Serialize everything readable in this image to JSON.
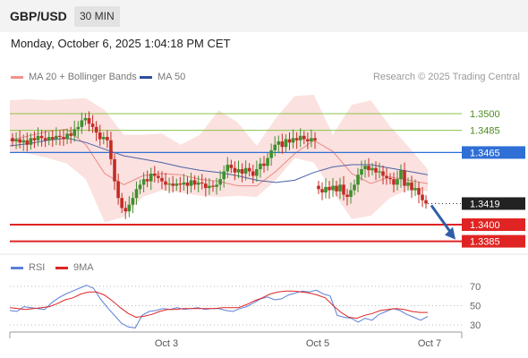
{
  "header": {
    "pair": "GBP/USD",
    "timeframe": "30 MIN"
  },
  "timestamp": "Monday, October 6, 2025 1:04:18 PM CET",
  "legend": {
    "ma20_bb": "MA 20 + Bollinger Bands",
    "ma50": "MA 50",
    "rsi": "RSI",
    "rsi_ma": "9MA"
  },
  "research": "Research © 2025 Trading Central",
  "colors": {
    "bollinger": "#f7c8c4",
    "ma20": "#e88b87",
    "ma50": "#4a63a8",
    "up": "#3f8f2f",
    "down": "#c42b25",
    "resistance": "#8bc34a",
    "pivot": "#2f6fd6",
    "support": "#e02424",
    "arrow": "#2f5fa8",
    "rsi": "#5b7fd6",
    "rsi_ma": "#e02424"
  },
  "chart_data": [
    {
      "type": "line",
      "name": "price",
      "levels": [
        {
          "label": "1.3500",
          "value": 1.35,
          "kind": "resistance"
        },
        {
          "label": "1.3485",
          "value": 1.3485,
          "kind": "resistance"
        },
        {
          "label": "1.3465",
          "value": 1.3465,
          "kind": "pivot"
        },
        {
          "label": "1.3419",
          "value": 1.3419,
          "kind": "last"
        },
        {
          "label": "1.3400",
          "value": 1.34,
          "kind": "support"
        },
        {
          "label": "1.3385",
          "value": 1.3385,
          "kind": "support"
        }
      ],
      "x_ticks": [
        "Oct 3",
        "Oct 5",
        "Oct 7"
      ],
      "ylim": [
        1.3375,
        1.3525
      ],
      "closes": [
        1.3475,
        1.3477,
        1.3474,
        1.3476,
        1.3472,
        1.3478,
        1.3476,
        1.348,
        1.3478,
        1.3476,
        1.3479,
        1.3477,
        1.348,
        1.3479,
        1.3477,
        1.3482,
        1.348,
        1.3486,
        1.3488,
        1.3494,
        1.3496,
        1.3491,
        1.3488,
        1.3483,
        1.3477,
        1.3479,
        1.3476,
        1.3459,
        1.3439,
        1.3424,
        1.3415,
        1.3412,
        1.3418,
        1.3424,
        1.3432,
        1.3436,
        1.3441,
        1.3439,
        1.3446,
        1.3444,
        1.3442,
        1.3439,
        1.3436,
        1.3437,
        1.3435,
        1.3437,
        1.3436,
        1.3438,
        1.3435,
        1.344,
        1.3436,
        1.3438,
        1.3437,
        1.3433,
        1.3435,
        1.3434,
        1.3436,
        1.3441,
        1.3448,
        1.3454,
        1.3451,
        1.3447,
        1.345,
        1.3446,
        1.3451,
        1.3448,
        1.3444,
        1.345,
        1.3455,
        1.3453,
        1.346,
        1.3467,
        1.3472,
        1.3475,
        1.347,
        1.3477,
        1.3474,
        1.3478,
        1.3476,
        1.348,
        1.3477,
        1.3475,
        1.3478,
        1.3476
      ],
      "post_gap_closes": [
        1.3432,
        1.3429,
        1.3434,
        1.3431,
        1.3435,
        1.343,
        1.3436,
        1.3427,
        1.3425,
        1.3431,
        1.3436,
        1.3445,
        1.345,
        1.3453,
        1.3449,
        1.3451,
        1.3447,
        1.3448,
        1.3444,
        1.3442,
        1.3441,
        1.3436,
        1.3441,
        1.3449,
        1.3435,
        1.3438,
        1.3431,
        1.3433,
        1.3427,
        1.3422,
        1.3419
      ],
      "ma50": [
        1.3471,
        1.3473,
        1.3476,
        1.3478,
        1.3474,
        1.3468,
        1.3462,
        1.3459,
        1.3456,
        1.3452,
        1.3449,
        1.3447,
        1.3444,
        1.344,
        1.3438,
        1.344,
        1.3447,
        1.3452,
        1.3454,
        1.3454,
        1.3451,
        1.3448,
        1.3445
      ],
      "bb_upper": [
        1.3512,
        1.3513,
        1.3512,
        1.3513,
        1.3514,
        1.3503,
        1.3481,
        1.3481,
        1.3482,
        1.3472,
        1.3481,
        1.3503,
        1.3492,
        1.3471,
        1.3496,
        1.3516,
        1.3517,
        1.3481,
        1.3508,
        1.3512,
        1.3489,
        1.347,
        1.345
      ],
      "bb_lower": [
        1.3466,
        1.3464,
        1.346,
        1.3455,
        1.3441,
        1.3402,
        1.3407,
        1.3425,
        1.3431,
        1.3429,
        1.3426,
        1.3425,
        1.3426,
        1.3425,
        1.344,
        1.346,
        1.3456,
        1.343,
        1.3405,
        1.3408,
        1.3424,
        1.3432,
        1.343
      ],
      "ma20": [
        1.3476,
        1.348,
        1.3484,
        1.3486,
        1.3472,
        1.3446,
        1.3436,
        1.3444,
        1.3446,
        1.3445,
        1.3441,
        1.3439,
        1.3435,
        1.3435,
        1.3448,
        1.3464,
        1.3476,
        1.3466,
        1.3446,
        1.3437,
        1.3443,
        1.344,
        1.3437
      ]
    },
    {
      "type": "line",
      "name": "rsi_panel",
      "levels": [
        70,
        50,
        30
      ],
      "ylim": [
        20,
        80
      ],
      "rsi": [
        45,
        44,
        49,
        48,
        47,
        46,
        53,
        58,
        62,
        65,
        68,
        71,
        68,
        57,
        48,
        40,
        32,
        28,
        27,
        40,
        44,
        45,
        47,
        46,
        48,
        46,
        47,
        48,
        46,
        47,
        47,
        45,
        44,
        47,
        49,
        53,
        57,
        59,
        56,
        57,
        61,
        63,
        65,
        64,
        66,
        62,
        60,
        40,
        38,
        37,
        33,
        37,
        35,
        41,
        44,
        47,
        45,
        41,
        38,
        35,
        39
      ],
      "rsi_ma": [
        48,
        47,
        46,
        47,
        48,
        49,
        52,
        56,
        58,
        62,
        64,
        64,
        61,
        55,
        48,
        42,
        38,
        39,
        41,
        44,
        46,
        46,
        47,
        47,
        47,
        47,
        47,
        48,
        48,
        48,
        51,
        55,
        58,
        62,
        64,
        65,
        65,
        64,
        63,
        61,
        58,
        50,
        43,
        38,
        37,
        40,
        42,
        45,
        46,
        47,
        46,
        44,
        43,
        43
      ]
    }
  ]
}
